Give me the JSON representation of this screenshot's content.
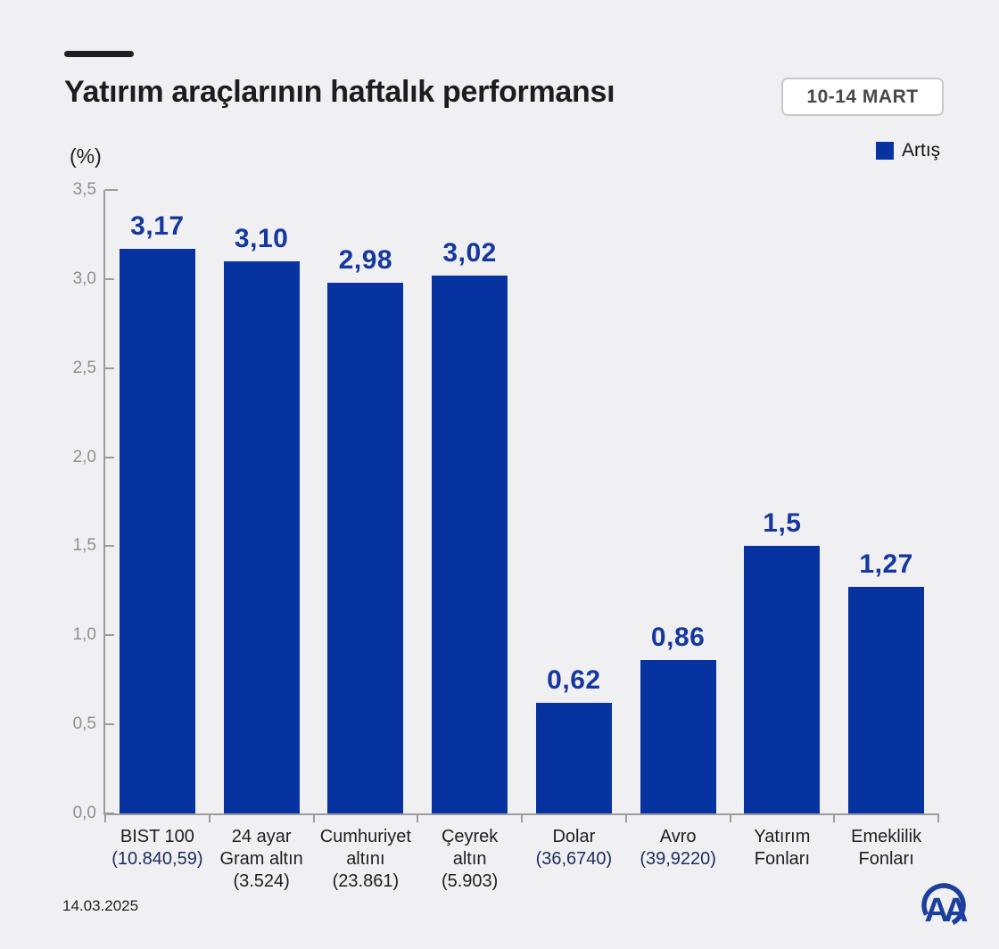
{
  "header": {
    "title": "Yatırım araçlarının haftalık performansı",
    "date_range": "10-14 MART"
  },
  "chart_data": {
    "type": "bar",
    "title": "Yatırım araçlarının haftalık performansı",
    "unit_label": "(%)",
    "legend_label": "Artış",
    "legend_position": "top-right",
    "grid": false,
    "ylim": [
      0,
      3.5
    ],
    "ytick_labels": [
      "0,0",
      "0,5",
      "1,0",
      "1,5",
      "2,0",
      "2,5",
      "3,0",
      "3,5"
    ],
    "ytick_values": [
      0,
      0.5,
      1.0,
      1.5,
      2.0,
      2.5,
      3.0,
      3.5
    ],
    "bars": [
      {
        "name": "BIST 100",
        "value": 3.17,
        "value_label": "3,17",
        "category_lines": [
          "BIST 100"
        ],
        "category_value": "(10.840,59)",
        "category_value_style": "navy"
      },
      {
        "name": "24 ayar Gram altın",
        "value": 3.1,
        "value_label": "3,10",
        "category_lines": [
          "24 ayar",
          "Gram altın"
        ],
        "category_value": "(3.524)",
        "category_value_style": "dark"
      },
      {
        "name": "Cumhuriyet altını",
        "value": 2.98,
        "value_label": "2,98",
        "category_lines": [
          "Cumhuriyet",
          "altını"
        ],
        "category_value": "(23.861)",
        "category_value_style": "dark"
      },
      {
        "name": "Çeyrek altın",
        "value": 3.02,
        "value_label": "3,02",
        "category_lines": [
          "Çeyrek",
          "altın"
        ],
        "category_value": "(5.903)",
        "category_value_style": "dark"
      },
      {
        "name": "Dolar",
        "value": 0.62,
        "value_label": "0,62",
        "category_lines": [
          "Dolar"
        ],
        "category_value": "(36,6740)",
        "category_value_style": "navy"
      },
      {
        "name": "Avro",
        "value": 0.86,
        "value_label": "0,86",
        "category_lines": [
          "Avro"
        ],
        "category_value": "(39,9220)",
        "category_value_style": "navy"
      },
      {
        "name": "Yatırım Fonları",
        "value": 1.5,
        "value_label": "1,5",
        "category_lines": [
          "Yatırım",
          "Fonları"
        ],
        "category_value": null,
        "category_value_style": null
      },
      {
        "name": "Emeklilik Fonları",
        "value": 1.27,
        "value_label": "1,27",
        "category_lines": [
          "Emeklilik",
          "Fonları"
        ],
        "category_value": null,
        "category_value_style": null
      }
    ],
    "colors": {
      "bar": "#0733A1",
      "value_label": "#15379F",
      "navy_value": "#1B2B5E",
      "axis": "#9C9CA0",
      "tick_label": "#8F8F93",
      "text_dark": "#1F1F1F",
      "background": "#F0F0F2",
      "logo_blue": "#1C3F9E"
    }
  },
  "footer": {
    "date": "14.03.2025",
    "logo_text": "AA"
  }
}
